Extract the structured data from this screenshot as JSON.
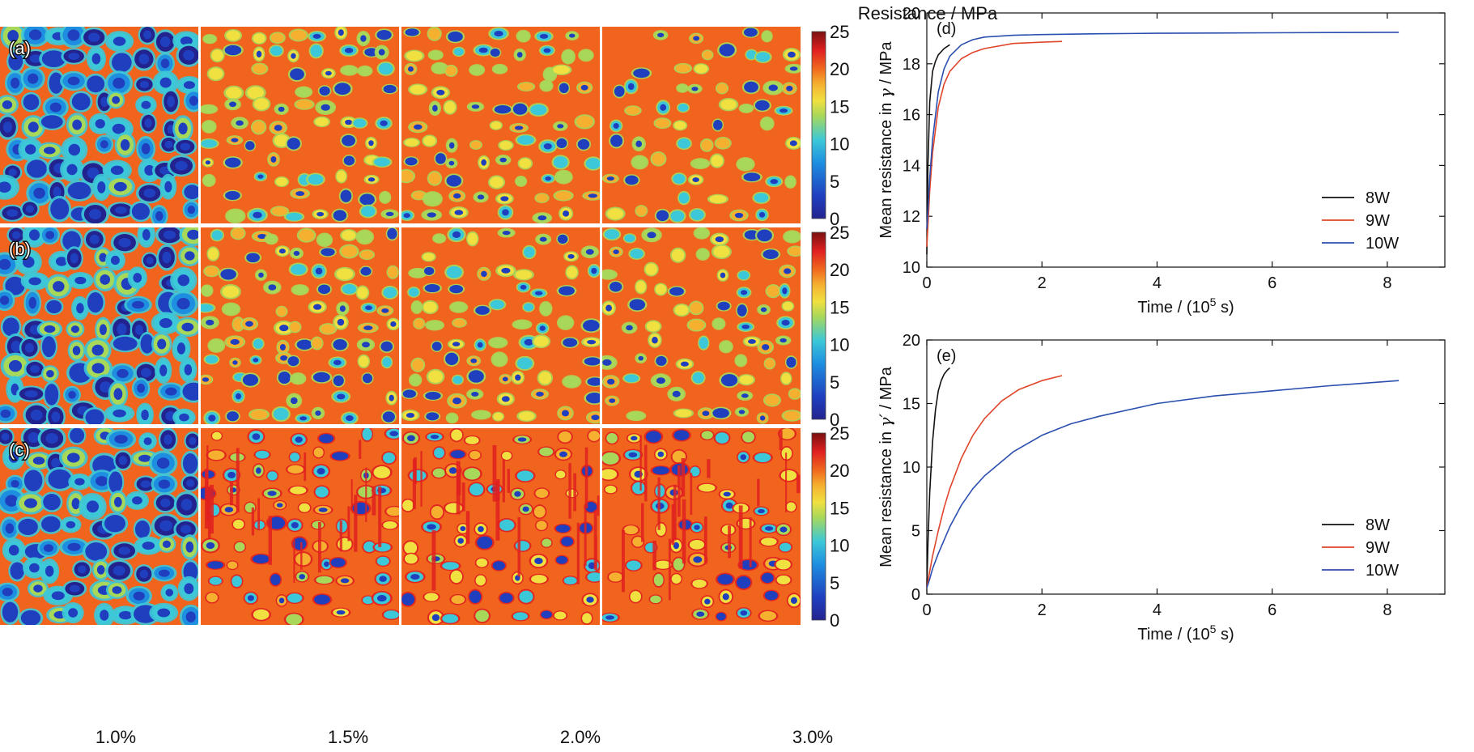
{
  "figure": {
    "colorbar_title": "Resistance / MPa",
    "row_labels": [
      "(a)",
      "(b)",
      "(c)"
    ],
    "column_labels": [
      "1.0%",
      "1.5%",
      "2.0%",
      "3.0%"
    ]
  },
  "colors": {
    "matrix_orange": "#f0641e",
    "series_8W": "#111111",
    "series_9W": "#e0452a",
    "series_10W": "#2b4fae"
  },
  "chart_data": [
    {
      "type": "heatmap",
      "colorbar": {
        "title": "Resistance / MPa",
        "range": [
          0,
          25
        ],
        "ticks": [
          0,
          5,
          10,
          15,
          20,
          25
        ],
        "colormap": "jet"
      },
      "rows": [
        "(a)",
        "(b)",
        "(c)"
      ],
      "columns": [
        "1.0%",
        "1.5%",
        "2.0%",
        "3.0%"
      ]
    },
    {
      "type": "line",
      "panel_label": "(d)",
      "xlabel_main": "Time / (10",
      "xlabel_sup": "5",
      "xlabel_end": " s)",
      "ylabel_main": "Mean resistance in ",
      "ylabel_symbol": "γ",
      "ylabel_end": " / MPa",
      "xlim": [
        0,
        9
      ],
      "ylim": [
        10,
        20
      ],
      "xticks": [
        0,
        2,
        4,
        6,
        8
      ],
      "yticks": [
        10,
        12,
        14,
        16,
        18,
        20
      ],
      "legend": "lower-right",
      "series": [
        {
          "name": "8W",
          "color": "#111111",
          "x": [
            0,
            0.02,
            0.05,
            0.1,
            0.15,
            0.2,
            0.3,
            0.4
          ],
          "y": [
            10.5,
            14.0,
            16.5,
            17.7,
            18.1,
            18.35,
            18.6,
            18.75
          ]
        },
        {
          "name": "9W",
          "color": "#e0452a",
          "x": [
            0,
            0.05,
            0.1,
            0.2,
            0.3,
            0.4,
            0.6,
            0.8,
            1.0,
            1.5,
            2.0,
            2.35
          ],
          "y": [
            10.8,
            13.0,
            14.5,
            16.3,
            17.2,
            17.7,
            18.2,
            18.45,
            18.6,
            18.8,
            18.85,
            18.88
          ]
        },
        {
          "name": "10W",
          "color": "#2b4fae",
          "x": [
            0,
            0.05,
            0.1,
            0.2,
            0.3,
            0.4,
            0.6,
            0.8,
            1.0,
            1.5,
            2.0,
            3.0,
            4.0,
            5.0,
            6.0,
            7.0,
            8.2
          ],
          "y": [
            11.5,
            13.5,
            15.0,
            16.9,
            17.8,
            18.3,
            18.75,
            18.95,
            19.05,
            19.12,
            19.15,
            19.18,
            19.2,
            19.21,
            19.22,
            19.23,
            19.24
          ]
        }
      ]
    },
    {
      "type": "line",
      "panel_label": "(e)",
      "xlabel_main": "Time / (10",
      "xlabel_sup": "5",
      "xlabel_end": " s)",
      "ylabel_main": "Mean resistance in ",
      "ylabel_symbol": "γ′",
      "ylabel_end": " / MPa",
      "xlim": [
        0,
        9
      ],
      "ylim": [
        0,
        20
      ],
      "xticks": [
        0,
        2,
        4,
        6,
        8
      ],
      "yticks": [
        0,
        5,
        10,
        15,
        20
      ],
      "legend": "lower-right",
      "series": [
        {
          "name": "8W",
          "color": "#111111",
          "x": [
            0,
            0.02,
            0.05,
            0.1,
            0.15,
            0.2,
            0.25,
            0.3,
            0.35,
            0.4
          ],
          "y": [
            0.5,
            4.0,
            8.0,
            12.0,
            14.5,
            16.0,
            16.8,
            17.3,
            17.6,
            17.8
          ]
        },
        {
          "name": "9W",
          "color": "#e0452a",
          "x": [
            0,
            0.05,
            0.1,
            0.2,
            0.3,
            0.4,
            0.6,
            0.8,
            1.0,
            1.3,
            1.6,
            2.0,
            2.35
          ],
          "y": [
            0.5,
            1.8,
            3.0,
            5.0,
            6.8,
            8.3,
            10.7,
            12.5,
            13.8,
            15.2,
            16.1,
            16.8,
            17.2
          ]
        },
        {
          "name": "10W",
          "color": "#2b4fae",
          "x": [
            0,
            0.05,
            0.1,
            0.2,
            0.4,
            0.6,
            0.8,
            1.0,
            1.5,
            2.0,
            2.5,
            3.0,
            4.0,
            5.0,
            6.0,
            7.0,
            8.2
          ],
          "y": [
            0.5,
            1.2,
            2.0,
            3.2,
            5.3,
            7.0,
            8.3,
            9.3,
            11.2,
            12.5,
            13.4,
            14.0,
            15.0,
            15.6,
            16.0,
            16.4,
            16.8
          ]
        }
      ]
    }
  ]
}
